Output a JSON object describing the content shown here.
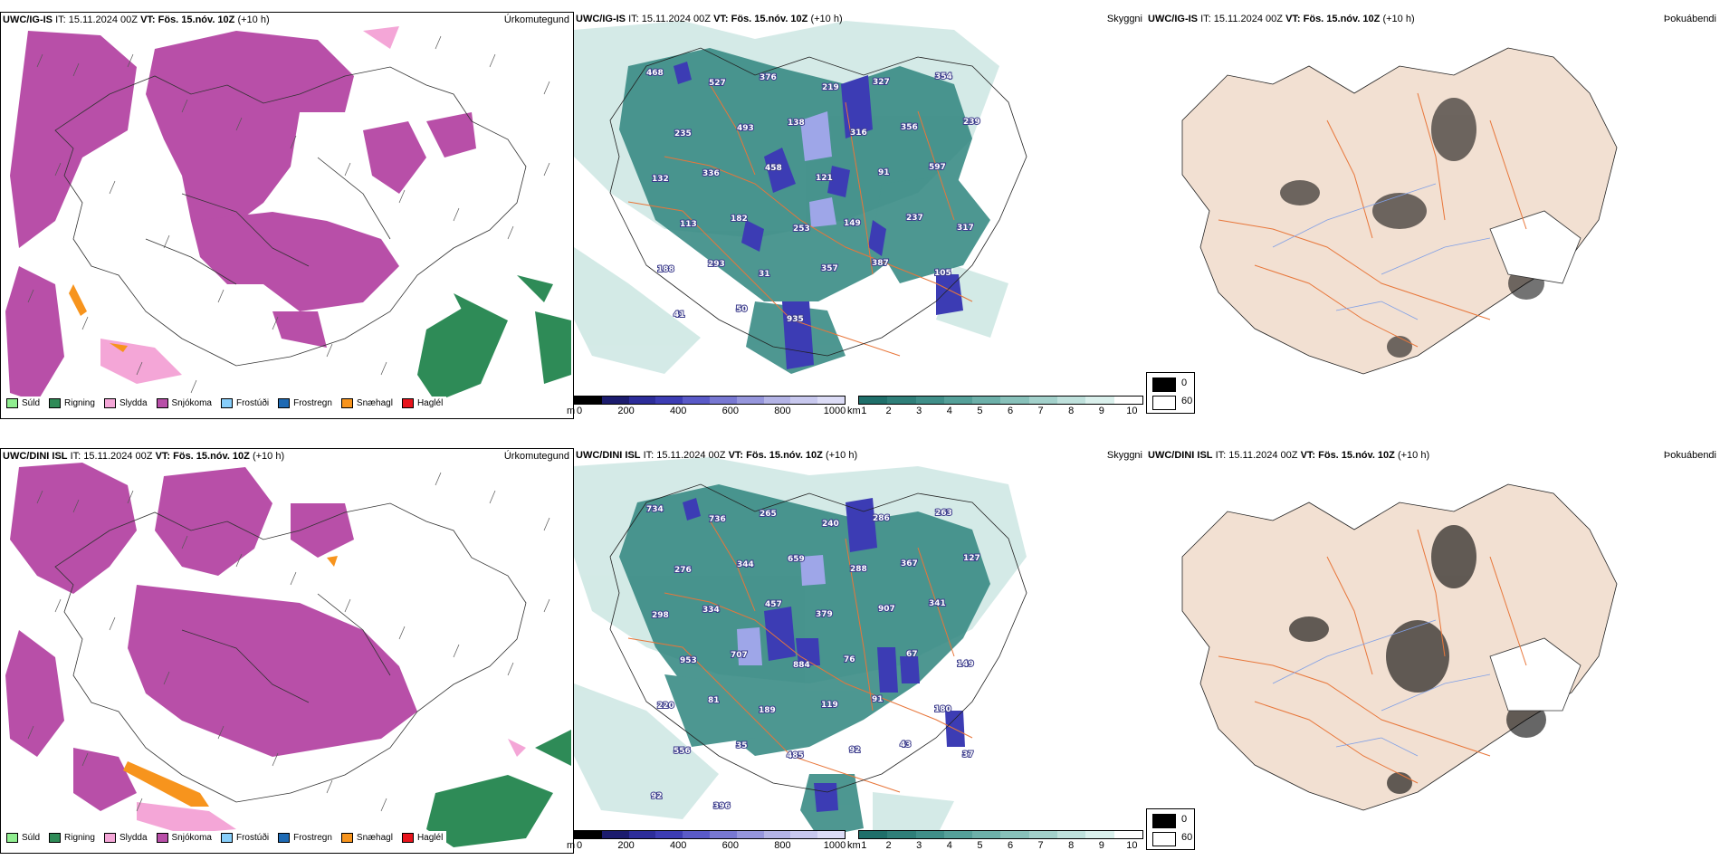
{
  "rows": [
    {
      "model": "UWC/IG-IS",
      "it_label": "IT:",
      "it_value": "15.11.2024 00Z",
      "vt_label": "VT:",
      "vt_value": "Fös. 15.nóv. 10Z",
      "lead": "(+10 h)",
      "precip_field": "Úrkomutegund",
      "vis_field": "Skyggni",
      "fog_field": "Þokuábendi",
      "vis_labels": [
        "468",
        "527",
        "376",
        "219",
        "327",
        "354",
        "235",
        "493",
        "138",
        "316",
        "356",
        "239",
        "132",
        "336",
        "458",
        "121",
        "91",
        "597",
        "113",
        "182",
        "253",
        "149",
        "237",
        "317",
        "188",
        "293",
        "31",
        "357",
        "387",
        "105",
        "41",
        "50",
        "935"
      ]
    },
    {
      "model": "UWC/DINI ISL",
      "it_label": "IT:",
      "it_value": "15.11.2024 00Z",
      "vt_label": "VT:",
      "vt_value": "Fös. 15.nóv. 10Z",
      "lead": "(+10 h)",
      "precip_field": "Úrkomutegund",
      "vis_field": "Skyggni",
      "fog_field": "Þokuábendi",
      "vis_labels": [
        "734",
        "736",
        "265",
        "240",
        "286",
        "263",
        "276",
        "344",
        "659",
        "288",
        "367",
        "127",
        "298",
        "334",
        "457",
        "379",
        "907",
        "341",
        "953",
        "707",
        "884",
        "76",
        "67",
        "149",
        "220",
        "81",
        "189",
        "119",
        "91",
        "180",
        "556",
        "35",
        "485",
        "92",
        "43",
        "37",
        "92",
        "396"
      ]
    }
  ],
  "precip_legend": [
    {
      "label": "Súld",
      "color": "#90ee90"
    },
    {
      "label": "Rigning",
      "color": "#2e8b57"
    },
    {
      "label": "Slydda",
      "color": "#f4a6d7"
    },
    {
      "label": "Snjókoma",
      "color": "#b84fa8"
    },
    {
      "label": "Frostúði",
      "color": "#87cefa"
    },
    {
      "label": "Frostregn",
      "color": "#1e6ab4"
    },
    {
      "label": "Snæhagl",
      "color": "#f7941d"
    },
    {
      "label": "Haglél",
      "color": "#e8141c"
    }
  ],
  "height_bar": {
    "unit": "m",
    "ticks": [
      "0",
      "200",
      "400",
      "600",
      "800",
      "1000"
    ],
    "colors": [
      "#000000",
      "#1c1c6e",
      "#2d2d9a",
      "#3d3db4",
      "#5a5ac8",
      "#7878d2",
      "#9696dc",
      "#b4b4e6",
      "#c8c8ee",
      "#dcdcf6"
    ]
  },
  "vis_bar": {
    "unit": "km",
    "ticks": [
      "1",
      "2",
      "3",
      "4",
      "5",
      "6",
      "7",
      "8",
      "9",
      "10"
    ],
    "colors": [
      "#1f6f6a",
      "#2f7f79",
      "#408f89",
      "#55a099",
      "#6db0a9",
      "#88c1ba",
      "#a3d1cb",
      "#bfe1dc",
      "#daf0ec",
      "#ffffff"
    ]
  },
  "fog_legend": {
    "high": "0",
    "low": "60"
  },
  "colors": {
    "snow": "#b84fa8",
    "rain": "#2e8b57",
    "sleet": "#f4a6d7",
    "snowhail": "#f7941d",
    "vis_teal": "#2f857e",
    "vis_light": "#cfe8e4",
    "vis_blue": "#3c3cb4",
    "fog_land": "#f2e0d2",
    "roads": "#e8763a",
    "rivers": "#7f9fe6"
  }
}
